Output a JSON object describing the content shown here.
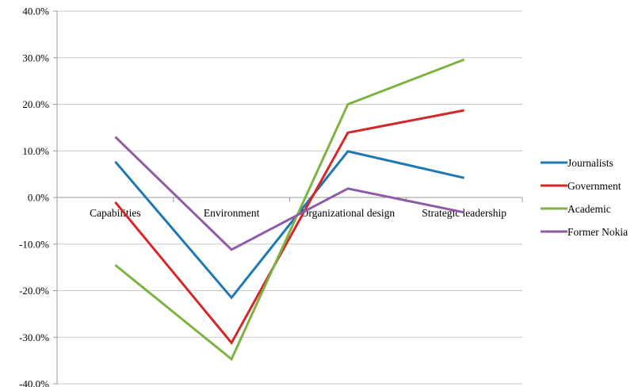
{
  "chart_data": {
    "type": "line",
    "categories": [
      "Capabilities",
      "Environment",
      "Organizational design",
      "Strategic leadership"
    ],
    "ylim": [
      -0.4,
      0.4
    ],
    "yticks": [
      0.4,
      0.3,
      0.2,
      0.1,
      0.0,
      -0.1,
      -0.2,
      -0.3,
      -0.4
    ],
    "ytick_labels": [
      "40.0%",
      "30.0%",
      "20.0%",
      "10.0%",
      "0.0%",
      "-10.0%",
      "-20.0%",
      "-30.0%",
      "-40.0%"
    ],
    "grid": true,
    "legend_position": "right",
    "series": [
      {
        "name": "Journalists",
        "color": "#1f77b4",
        "values": [
          0.077,
          -0.215,
          0.099,
          0.042
        ]
      },
      {
        "name": "Government",
        "color": "#d62728",
        "values": [
          -0.01,
          -0.312,
          0.139,
          0.187
        ]
      },
      {
        "name": "Academic",
        "color": "#7cb342",
        "values": [
          -0.145,
          -0.347,
          0.2,
          0.296
        ]
      },
      {
        "name": "Former Nokia",
        "color": "#8e5ba6",
        "values": [
          0.13,
          -0.112,
          0.019,
          -0.032
        ]
      }
    ]
  }
}
